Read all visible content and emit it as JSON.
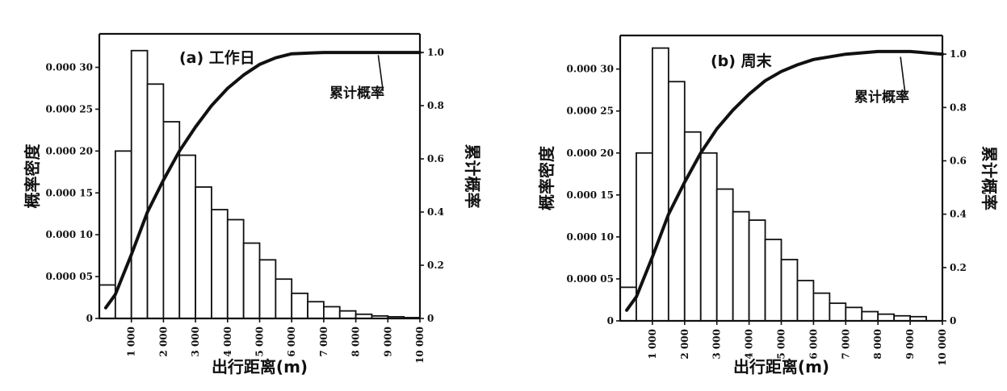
{
  "chart_data": [
    {
      "type": "bar",
      "panel_label": "(a) 工作日",
      "xlabel": "出行距离(m)",
      "ylabel": "概率密度",
      "y2label": "累计概率",
      "annotation": "累计概率",
      "bin_edges": [
        0,
        500,
        1000,
        1500,
        2000,
        2500,
        3000,
        3500,
        4000,
        4500,
        5000,
        5500,
        6000,
        6500,
        7000,
        7500,
        8000,
        8500,
        9000,
        9500,
        10000
      ],
      "values": [
        4e-05,
        0.0002,
        0.00032,
        0.00028,
        0.000235,
        0.000195,
        0.000157,
        0.00013,
        0.000118,
        9e-05,
        7e-05,
        4.7e-05,
        3e-05,
        2e-05,
        1.4e-05,
        9e-06,
        5e-06,
        3e-06,
        2e-06,
        1e-06
      ],
      "cumulative": {
        "x": [
          200,
          500,
          1000,
          1500,
          2000,
          2500,
          3000,
          3500,
          4000,
          4500,
          5000,
          5500,
          6000,
          7000,
          8000,
          9000,
          10000
        ],
        "y": [
          0.04,
          0.09,
          0.24,
          0.4,
          0.52,
          0.63,
          0.72,
          0.8,
          0.865,
          0.915,
          0.955,
          0.98,
          0.995,
          1.0,
          1.0,
          1.0,
          1.0
        ]
      },
      "xlim": [
        0,
        10000
      ],
      "ylim": [
        0,
        0.00034
      ],
      "y2lim": [
        0,
        1.07
      ],
      "x_ticks": [
        1000,
        2000,
        3000,
        4000,
        5000,
        6000,
        7000,
        8000,
        9000,
        10000
      ],
      "x_tick_labels": [
        "1 000",
        "2 000",
        "3 000",
        "4 000",
        "5 000",
        "6 000",
        "7 000",
        "8 000",
        "9 000",
        "10 000"
      ],
      "y_ticks": [
        0,
        5e-05,
        0.0001,
        0.00015,
        0.0002,
        0.00025,
        0.0003
      ],
      "y_tick_labels": [
        "0",
        "0.000 05",
        "0.000 10",
        "0.000 15",
        "0.000 20",
        "0.000 25",
        "0.000 30"
      ],
      "y2_ticks": [
        0,
        0.2,
        0.4,
        0.6,
        0.8,
        1.0
      ],
      "y2_tick_labels": [
        "0",
        "0.2",
        "0.4",
        "0.6",
        "0.8",
        "1.0"
      ]
    },
    {
      "type": "bar",
      "panel_label": "(b) 周末",
      "xlabel": "出行距离(m)",
      "ylabel": "概率密度",
      "y2label": "累计概率",
      "annotation": "累计概率",
      "bin_edges": [
        0,
        500,
        1000,
        1500,
        2000,
        2500,
        3000,
        3500,
        4000,
        4500,
        5000,
        5500,
        6000,
        6500,
        7000,
        7500,
        8000,
        8500,
        9000,
        9500,
        10000
      ],
      "values": [
        4e-05,
        0.0002,
        0.000325,
        0.000285,
        0.000225,
        0.0002,
        0.000157,
        0.00013,
        0.00012,
        9.7e-05,
        7.3e-05,
        4.8e-05,
        3.3e-05,
        2.1e-05,
        1.6e-05,
        1.1e-05,
        8e-06,
        6e-06,
        5e-06,
        0
      ],
      "cumulative": {
        "x": [
          200,
          500,
          1000,
          1500,
          2000,
          2500,
          3000,
          3500,
          4000,
          4500,
          5000,
          5500,
          6000,
          7000,
          8000,
          9000,
          10000
        ],
        "y": [
          0.04,
          0.09,
          0.24,
          0.4,
          0.52,
          0.63,
          0.72,
          0.79,
          0.85,
          0.9,
          0.935,
          0.96,
          0.98,
          1.0,
          1.01,
          1.01,
          1.0
        ]
      },
      "xlim": [
        0,
        10000
      ],
      "ylim": [
        0,
        0.00034
      ],
      "y2lim": [
        0,
        1.07
      ],
      "x_ticks": [
        1000,
        2000,
        3000,
        4000,
        5000,
        6000,
        7000,
        8000,
        9000,
        10000
      ],
      "x_tick_labels": [
        "1 000",
        "2 000",
        "3 000",
        "4 000",
        "5 000",
        "6 000",
        "7 000",
        "8 000",
        "9 000",
        "10 000"
      ],
      "y_ticks": [
        0,
        5e-05,
        0.0001,
        0.00015,
        0.0002,
        0.00025,
        0.0003
      ],
      "y_tick_labels": [
        "0",
        "0.000 05",
        "0.000 10",
        "0.000 15",
        "0.000 20",
        "0.000 25",
        "0.000 30"
      ],
      "y2_ticks": [
        0,
        0.2,
        0.4,
        0.6,
        0.8,
        1.0
      ],
      "y2_tick_labels": [
        "0",
        "0.2",
        "0.4",
        "0.6",
        "0.8",
        "1.0"
      ]
    }
  ]
}
